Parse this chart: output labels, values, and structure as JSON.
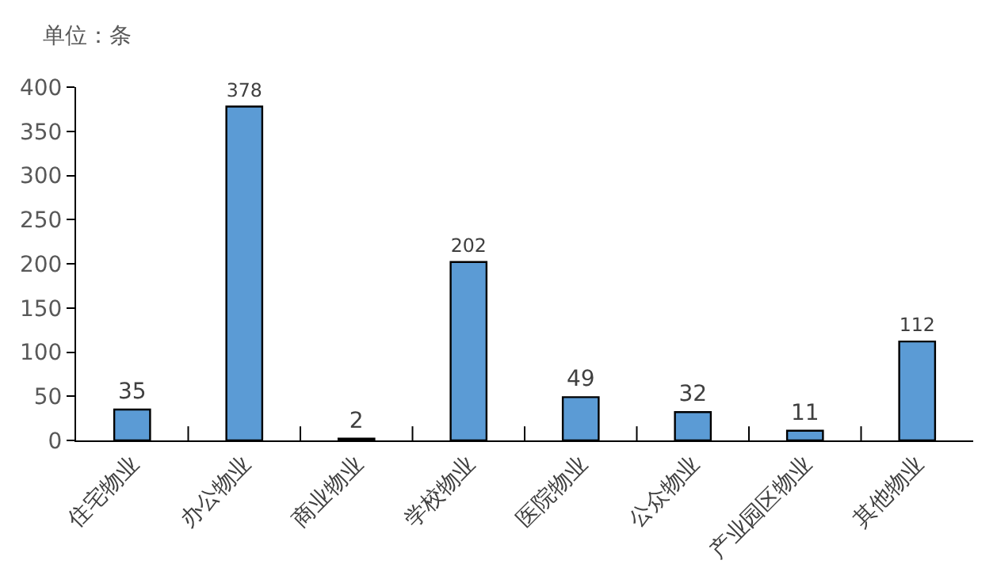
{
  "chart_data": {
    "type": "bar",
    "annotations": [
      "单位：条"
    ],
    "categories": [
      "住宅物业",
      "办公物业",
      "商业物业",
      "学校物业",
      "医院物业",
      "公众物业",
      "产业园区物业",
      "其他物业"
    ],
    "values": [
      35,
      378,
      2,
      202,
      49,
      32,
      11,
      112
    ],
    "color": "#5b9bd5",
    "data_labels": true,
    "ylim": [
      0,
      400
    ],
    "yticks": [
      0,
      50,
      100,
      150,
      200,
      250,
      300,
      350,
      400
    ]
  }
}
